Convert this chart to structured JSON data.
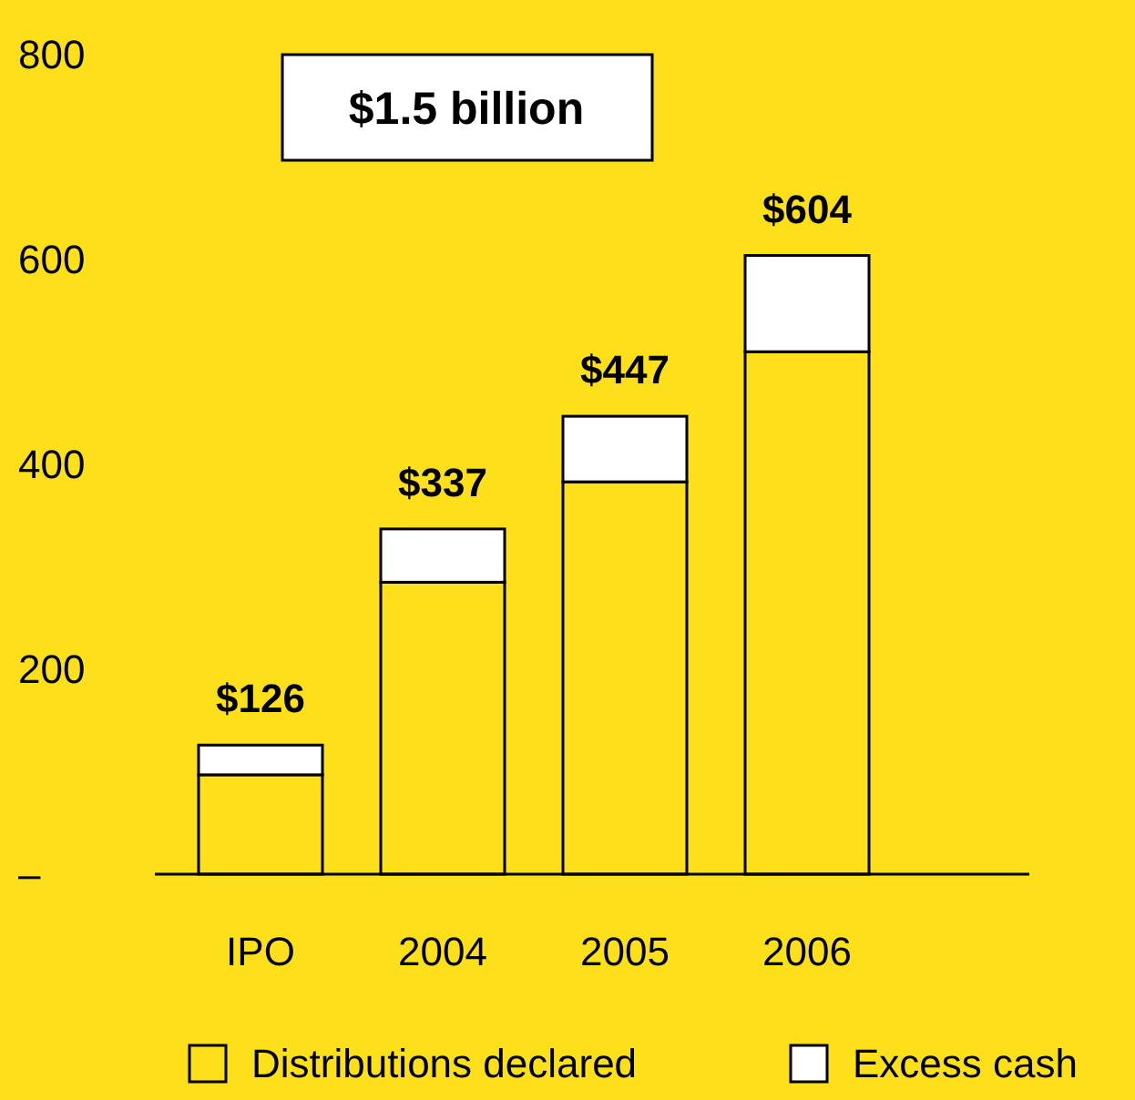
{
  "chart_data": {
    "type": "bar",
    "stacked": true,
    "categories": [
      "IPO",
      "2004",
      "2005",
      "2006"
    ],
    "series": [
      {
        "name": "Distributions declared",
        "color": "#fde01a",
        "values": [
          97,
          285,
          383,
          510
        ]
      },
      {
        "name": "Excess cash",
        "color": "#ffffff",
        "values": [
          29,
          52,
          64,
          94
        ]
      }
    ],
    "totals": [
      "$126",
      "$337",
      "$447",
      "$604"
    ],
    "ylim": [
      0,
      800
    ],
    "yticks": [
      {
        "value": 0,
        "label": "–"
      },
      200,
      400,
      600,
      800
    ],
    "annotations": [
      "$1.5 billion"
    ],
    "legend": "bottom",
    "grid": false
  }
}
